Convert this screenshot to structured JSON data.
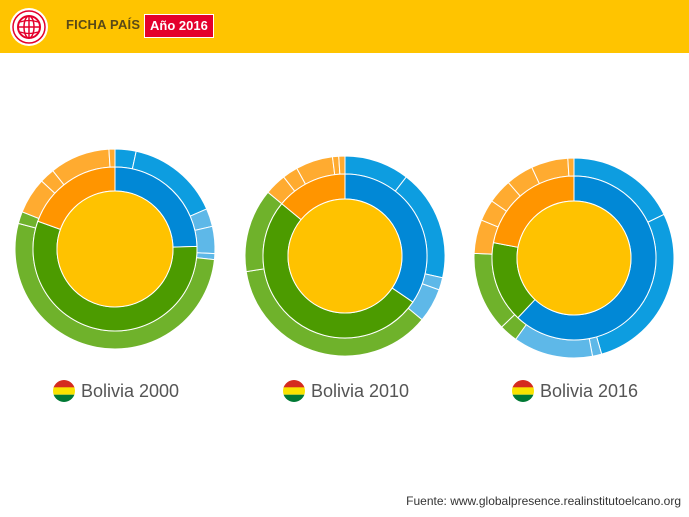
{
  "header": {
    "title": "FICHA PAÍS",
    "year_badge": "Año 2016",
    "logo_icon": "globe-icon"
  },
  "source": "Fuente: www.globalpresence.realinstitutoelcano.org",
  "colors": {
    "header_bg": "#ffc400",
    "badge_bg": "#e4002b",
    "center": "#ffc200",
    "blue_inner": "#0188d6",
    "blue_outer": "#0d9de0",
    "blue_light": "#5eb8e8",
    "green_inner": "#4c9b00",
    "green_outer": "#6fb22b",
    "orange_inner": "#ff9500",
    "orange_outer": "#ffab30"
  },
  "chart_data": [
    {
      "type": "sunburst",
      "title": "Bolivia 2000",
      "inner": [
        {
          "category": "blue",
          "value": 24.5
        },
        {
          "category": "green",
          "value": 56.0
        },
        {
          "category": "orange",
          "value": 19.5
        }
      ],
      "outer": [
        {
          "category": "blue",
          "value": 3.5
        },
        {
          "category": "blue",
          "value": 15.5
        },
        {
          "category": "blue-light",
          "value": 3.0
        },
        {
          "category": "blue-light",
          "value": 4.5
        },
        {
          "category": "blue-light",
          "value": 1.0
        },
        {
          "category": "green",
          "value": 54.0
        },
        {
          "category": "green",
          "value": 2.0
        },
        {
          "category": "orange",
          "value": 6.0
        },
        {
          "category": "orange",
          "value": 2.5
        },
        {
          "category": "orange",
          "value": 10.0
        },
        {
          "category": "orange",
          "value": 1.0
        }
      ]
    },
    {
      "type": "sunburst",
      "title": "Bolivia 2010",
      "inner": [
        {
          "category": "blue",
          "value": 34.5
        },
        {
          "category": "green",
          "value": 51.5
        },
        {
          "category": "orange",
          "value": 14.0
        }
      ],
      "outer": [
        {
          "category": "blue",
          "value": 10.5
        },
        {
          "category": "blue",
          "value": 18.0
        },
        {
          "category": "blue-light",
          "value": 2.0
        },
        {
          "category": "blue-light",
          "value": 5.5
        },
        {
          "category": "green",
          "value": 36.5
        },
        {
          "category": "green",
          "value": 13.5
        },
        {
          "category": "orange",
          "value": 3.5
        },
        {
          "category": "orange",
          "value": 2.5
        },
        {
          "category": "orange",
          "value": 6.0
        },
        {
          "category": "orange",
          "value": 1.0
        },
        {
          "category": "orange",
          "value": 1.0
        }
      ]
    },
    {
      "type": "sunburst",
      "title": "Bolivia 2016",
      "inner": [
        {
          "category": "blue",
          "value": 62.0
        },
        {
          "category": "green",
          "value": 16.0
        },
        {
          "category": "orange",
          "value": 22.0
        }
      ],
      "outer": [
        {
          "category": "blue",
          "value": 18.0
        },
        {
          "category": "blue",
          "value": 28.0
        },
        {
          "category": "blue-light",
          "value": 1.5
        },
        {
          "category": "blue-light",
          "value": 13.0
        },
        {
          "category": "green",
          "value": 3.0
        },
        {
          "category": "green",
          "value": 13.0
        },
        {
          "category": "orange",
          "value": 5.5
        },
        {
          "category": "orange",
          "value": 3.5
        },
        {
          "category": "orange",
          "value": 4.0
        },
        {
          "category": "orange",
          "value": 4.5
        },
        {
          "category": "orange",
          "value": 6.0
        },
        {
          "category": "orange",
          "value": 1.0
        }
      ]
    }
  ]
}
